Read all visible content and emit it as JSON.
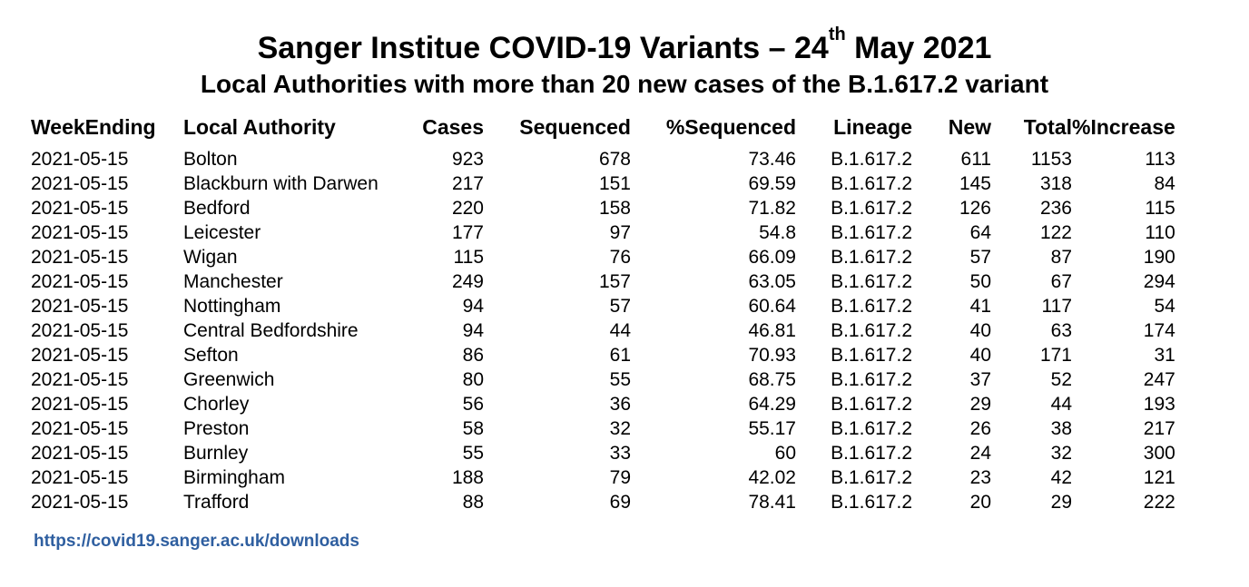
{
  "title": {
    "main_before": "Sanger Institue COVID-19 Variants – 24",
    "superscript": "th",
    "main_after": " May 2021",
    "subtitle": "Local Authorities with more than 20 new cases of the B.1.617.2 variant"
  },
  "table": {
    "headers": {
      "week": "WeekEnding",
      "la": "Local Authority",
      "cases": "Cases",
      "sequenced": "Sequenced",
      "pct_sequenced": "%Sequenced",
      "lineage": "Lineage",
      "new": "New",
      "total": "Total",
      "pct_increase": "%Increase"
    },
    "rows": [
      {
        "week": "2021-05-15",
        "la": "Bolton",
        "cases": "923",
        "sequenced": "678",
        "pct_sequenced": "73.46",
        "lineage": "B.1.617.2",
        "new": "611",
        "total": "1153",
        "pct_increase": "113"
      },
      {
        "week": "2021-05-15",
        "la": "Blackburn with Darwen",
        "cases": "217",
        "sequenced": "151",
        "pct_sequenced": "69.59",
        "lineage": "B.1.617.2",
        "new": "145",
        "total": "318",
        "pct_increase": "84"
      },
      {
        "week": "2021-05-15",
        "la": "Bedford",
        "cases": "220",
        "sequenced": "158",
        "pct_sequenced": "71.82",
        "lineage": "B.1.617.2",
        "new": "126",
        "total": "236",
        "pct_increase": "115"
      },
      {
        "week": "2021-05-15",
        "la": "Leicester",
        "cases": "177",
        "sequenced": "97",
        "pct_sequenced": "54.8",
        "lineage": "B.1.617.2",
        "new": "64",
        "total": "122",
        "pct_increase": "110"
      },
      {
        "week": "2021-05-15",
        "la": "Wigan",
        "cases": "115",
        "sequenced": "76",
        "pct_sequenced": "66.09",
        "lineage": "B.1.617.2",
        "new": "57",
        "total": "87",
        "pct_increase": "190"
      },
      {
        "week": "2021-05-15",
        "la": "Manchester",
        "cases": "249",
        "sequenced": "157",
        "pct_sequenced": "63.05",
        "lineage": "B.1.617.2",
        "new": "50",
        "total": "67",
        "pct_increase": "294"
      },
      {
        "week": "2021-05-15",
        "la": "Nottingham",
        "cases": "94",
        "sequenced": "57",
        "pct_sequenced": "60.64",
        "lineage": "B.1.617.2",
        "new": "41",
        "total": "117",
        "pct_increase": "54"
      },
      {
        "week": "2021-05-15",
        "la": "Central Bedfordshire",
        "cases": "94",
        "sequenced": "44",
        "pct_sequenced": "46.81",
        "lineage": "B.1.617.2",
        "new": "40",
        "total": "63",
        "pct_increase": "174"
      },
      {
        "week": "2021-05-15",
        "la": "Sefton",
        "cases": "86",
        "sequenced": "61",
        "pct_sequenced": "70.93",
        "lineage": "B.1.617.2",
        "new": "40",
        "total": "171",
        "pct_increase": "31"
      },
      {
        "week": "2021-05-15",
        "la": "Greenwich",
        "cases": "80",
        "sequenced": "55",
        "pct_sequenced": "68.75",
        "lineage": "B.1.617.2",
        "new": "37",
        "total": "52",
        "pct_increase": "247"
      },
      {
        "week": "2021-05-15",
        "la": "Chorley",
        "cases": "56",
        "sequenced": "36",
        "pct_sequenced": "64.29",
        "lineage": "B.1.617.2",
        "new": "29",
        "total": "44",
        "pct_increase": "193"
      },
      {
        "week": "2021-05-15",
        "la": "Preston",
        "cases": "58",
        "sequenced": "32",
        "pct_sequenced": "55.17",
        "lineage": "B.1.617.2",
        "new": "26",
        "total": "38",
        "pct_increase": "217"
      },
      {
        "week": "2021-05-15",
        "la": "Burnley",
        "cases": "55",
        "sequenced": "33",
        "pct_sequenced": "60",
        "lineage": "B.1.617.2",
        "new": "24",
        "total": "32",
        "pct_increase": "300"
      },
      {
        "week": "2021-05-15",
        "la": "Birmingham",
        "cases": "188",
        "sequenced": "79",
        "pct_sequenced": "42.02",
        "lineage": "B.1.617.2",
        "new": "23",
        "total": "42",
        "pct_increase": "121"
      },
      {
        "week": "2021-05-15",
        "la": "Trafford",
        "cases": "88",
        "sequenced": "69",
        "pct_sequenced": "78.41",
        "lineage": "B.1.617.2",
        "new": "20",
        "total": "29",
        "pct_increase": "222"
      }
    ]
  },
  "footer": {
    "link_text": "https://covid19.sanger.ac.uk/downloads",
    "link_color": "#2f5fa0"
  }
}
